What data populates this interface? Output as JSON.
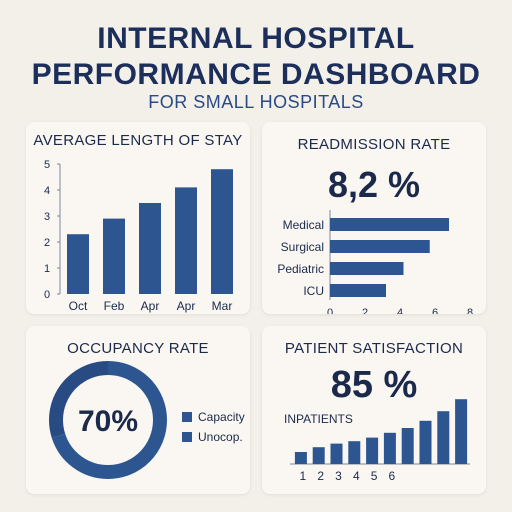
{
  "header": {
    "title_line1": "INTERNAL HOSPITAL",
    "title_line2": "PERFORMANCE DASHBOARD",
    "subtitle": "FOR SMALL HOSPITALS"
  },
  "colors": {
    "bar": "#2d5690",
    "ring_bg": "#e9eef6",
    "axis": "#7d8797"
  },
  "cards": {
    "los": {
      "title": "AVERAGE LENGTH OF STAY"
    },
    "readmission": {
      "title": "READMISSION RATE",
      "value": "8,2 %"
    },
    "occupancy": {
      "title": "OCCUPANCY RATE",
      "value": "70%",
      "legend": [
        "Capacity",
        "Unocop."
      ]
    },
    "satisfaction": {
      "title": "PATIENT SATISFACTION",
      "value": "85 %",
      "sublabel": "INPATIENTS"
    }
  },
  "chart_data": [
    {
      "type": "bar",
      "title": "AVERAGE LENGTH OF STAY",
      "categories": [
        "Oct",
        "Feb",
        "Apr",
        "Apr",
        "Mar"
      ],
      "values": [
        2.3,
        2.9,
        3.5,
        4.1,
        4.8
      ],
      "ylim": [
        0,
        5
      ],
      "yticks": [
        0,
        1,
        2,
        3,
        4,
        5
      ]
    },
    {
      "type": "bar",
      "orientation": "horizontal",
      "title": "READMISSION RATE",
      "categories": [
        "Medical",
        "Surgical",
        "Pediatric",
        "ICU"
      ],
      "values": [
        6.8,
        5.7,
        4.2,
        3.2
      ],
      "xlim": [
        0,
        8
      ],
      "xticks": [
        0,
        2,
        4,
        6,
        8
      ]
    },
    {
      "type": "pie",
      "title": "OCCUPANCY RATE",
      "labels": [
        "Capacity",
        "Unocop."
      ],
      "values": [
        70,
        30
      ]
    },
    {
      "type": "bar",
      "title": "PATIENT SATISFACTION",
      "xticks": [
        "1",
        "2",
        "3",
        "4",
        "5",
        "6"
      ],
      "values": [
        1.0,
        1.4,
        1.7,
        1.9,
        2.2,
        2.6,
        3.0,
        3.6,
        4.4,
        5.4
      ],
      "ylim": [
        0,
        6
      ]
    }
  ]
}
